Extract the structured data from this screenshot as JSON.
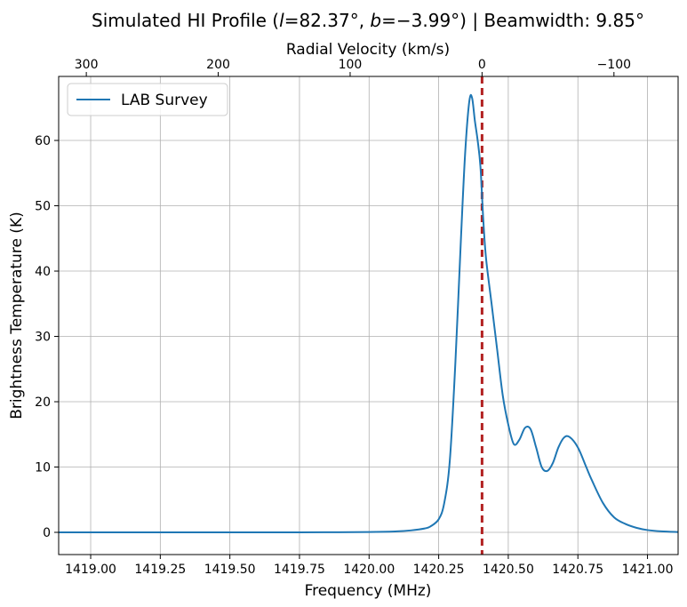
{
  "chart_data": {
    "type": "line",
    "title": {
      "prefix": "Simulated HI Profile (",
      "l_symbol": "l",
      "l_value": "=82.37°, ",
      "b_symbol": "b",
      "b_value": "=−3.99°) | Beamwidth: 9.85°"
    },
    "xlabel": "Frequency (MHz)",
    "ylabel": "Brightness Temperature (K)",
    "x2label": "Radial Velocity (km/s)",
    "xlim": [
      1418.885,
      1421.11
    ],
    "ylim": [
      -3.4,
      69.8
    ],
    "xticks": [
      1419.0,
      1419.25,
      1419.5,
      1419.75,
      1420.0,
      1420.25,
      1420.5,
      1420.75,
      1421.0
    ],
    "xtick_labels": [
      "1419.00",
      "1419.25",
      "1419.50",
      "1419.75",
      "1420.00",
      "1420.25",
      "1420.50",
      "1420.75",
      "1421.00"
    ],
    "yticks": [
      0,
      10,
      20,
      30,
      40,
      50,
      60
    ],
    "ytick_labels": [
      "0",
      "10",
      "20",
      "30",
      "40",
      "50",
      "60"
    ],
    "x2ticks_velocity": [
      300,
      200,
      100,
      0,
      -100
    ],
    "x2tick_labels": [
      "300",
      "200",
      "100",
      "0",
      "−100"
    ],
    "rest_frequency_mhz": 1420.40575,
    "grid": true,
    "legend_position": "upper-left",
    "reference_line": {
      "x": 1420.40575,
      "style": "dashed",
      "color": "#b22222"
    },
    "series": [
      {
        "name": "LAB Survey",
        "color": "#1f77b4",
        "x": [
          1418.885,
          1419.0,
          1419.25,
          1419.5,
          1419.75,
          1420.0,
          1420.1,
          1420.15,
          1420.2,
          1420.22,
          1420.25,
          1420.27,
          1420.29,
          1420.31,
          1420.33,
          1420.345,
          1420.36,
          1420.37,
          1420.38,
          1420.39,
          1420.4,
          1420.41,
          1420.42,
          1420.44,
          1420.46,
          1420.48,
          1420.5,
          1420.52,
          1420.54,
          1420.56,
          1420.58,
          1420.6,
          1420.62,
          1420.64,
          1420.66,
          1420.68,
          1420.7,
          1420.72,
          1420.75,
          1420.78,
          1420.8,
          1420.84,
          1420.88,
          1420.92,
          1420.96,
          1421.0,
          1421.05,
          1421.11
        ],
        "y": [
          0,
          0,
          0,
          0,
          0,
          0.05,
          0.15,
          0.3,
          0.6,
          0.9,
          2.0,
          4.5,
          11,
          26,
          45,
          58,
          66,
          66.5,
          63,
          60,
          56,
          48,
          42,
          35,
          28,
          21,
          16.5,
          13.5,
          14.2,
          16,
          15.8,
          13,
          10,
          9.4,
          10.6,
          13,
          14.5,
          14.6,
          13,
          10,
          8,
          4.5,
          2.3,
          1.3,
          0.7,
          0.35,
          0.15,
          0.05
        ]
      }
    ]
  }
}
